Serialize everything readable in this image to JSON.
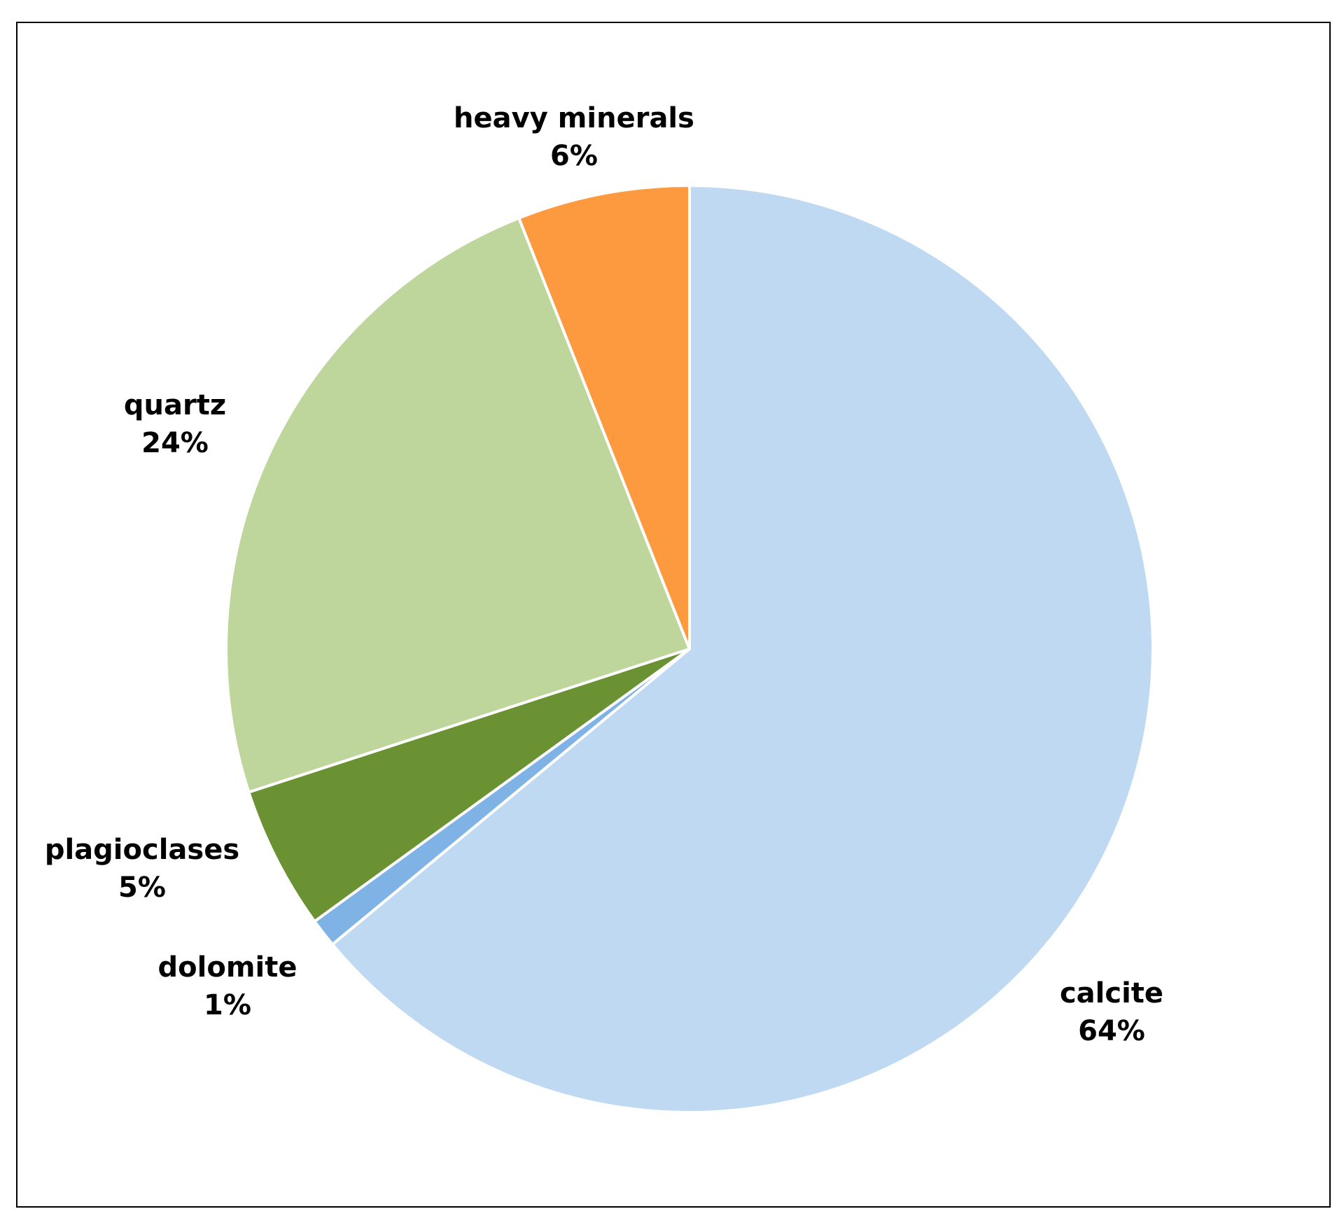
{
  "chart_data": {
    "type": "pie",
    "title": "",
    "start_angle_deg": 0,
    "direction": "clockwise",
    "slice_border_color": "#ffffff",
    "slices": [
      {
        "label": "calcite",
        "value": 64,
        "value_label": "64%",
        "color": "#bfd9f2"
      },
      {
        "label": "dolomite",
        "value": 1,
        "value_label": "1%",
        "color": "#7fb2e5"
      },
      {
        "label": "plagioclases",
        "value": 5,
        "value_label": "5%",
        "color": "#6a9232"
      },
      {
        "label": "quartz",
        "value": 24,
        "value_label": "24%",
        "color": "#bed69b"
      },
      {
        "label": "heavy minerals",
        "value": 6,
        "value_label": "6%",
        "color": "#fd9a40"
      }
    ]
  }
}
